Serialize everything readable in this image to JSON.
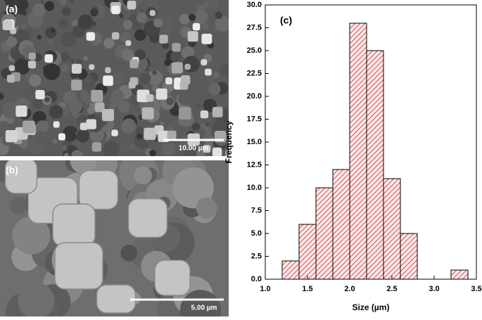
{
  "panels": [
    {
      "label": "(a)",
      "scale_bar": "10.00 µm"
    },
    {
      "label": "(b)",
      "scale_bar": "5.00 µm"
    }
  ],
  "chart_data": {
    "type": "histogram",
    "panel_label": "(c)",
    "x_label": "Size (µm)",
    "y_label": "Frequency",
    "bins": [
      1.2,
      1.4,
      1.6,
      1.8,
      2.0,
      2.2,
      2.4,
      2.6,
      2.8,
      3.0,
      3.2,
      3.4
    ],
    "counts": [
      2,
      6,
      10,
      12,
      28,
      25,
      11,
      5,
      0,
      0,
      1
    ],
    "color": "#d0202a",
    "xlim": [
      1.0,
      3.5
    ],
    "xticks": [
      {
        "value": 1.0,
        "label": "1.0"
      },
      1.5,
      {
        "value": 2.0,
        "label": "2.0"
      },
      2.5,
      {
        "value": 3.0,
        "label": "3.0"
      },
      3.5
    ],
    "ylim": [
      0,
      30
    ],
    "yticks": [
      {
        "value": 0,
        "label": "0.0"
      },
      2.5,
      {
        "value": 5,
        "label": "5.0"
      },
      7.5,
      {
        "value": 10,
        "label": "10.0"
      },
      12.5,
      {
        "value": 15,
        "label": "15.0"
      },
      17.5,
      {
        "value": 20,
        "label": "20.0"
      },
      22.5,
      {
        "value": 25,
        "label": "25.0"
      },
      27.5,
      {
        "value": 30,
        "label": "30.0"
      }
    ]
  }
}
